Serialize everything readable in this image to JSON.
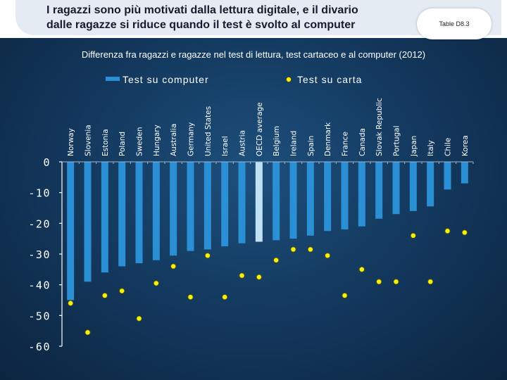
{
  "header": {
    "title_line1": "I ragazzi sono più motivati dalla lettura digitale, e il divario",
    "title_line2": "dalle ragazze si riduce quando il test è svolto al computer",
    "table_label": "Table D8.3"
  },
  "colors": {
    "bar": "#2b8fd6",
    "bar_highlight": "#bfe3f5",
    "marker": "#f5f010",
    "marker_edge": "#5a5a00",
    "axis": "#ffffff",
    "grid_tick": "#9cb8d2"
  },
  "chart_data": {
    "type": "bar",
    "title": "Differenza fra ragazzi e ragazze nel test di lettura, test cartaceo e al computer (2012)",
    "categories": [
      "Norway",
      "Slovenia",
      "Estonia",
      "Poland",
      "Sweden",
      "Hungary",
      "Australia",
      "Germany",
      "United States",
      "Israel",
      "Austria",
      "OECD average",
      "Belgium",
      "Ireland",
      "Spain",
      "Denmark",
      "France",
      "Canada",
      "Slovak Republic",
      "Portugal",
      "Japan",
      "Italy",
      "Chile",
      "Korea"
    ],
    "highlight_category": "OECD average",
    "series": [
      {
        "name": "Test su computer",
        "kind": "bar",
        "values": [
          -45,
          -39,
          -36,
          -34,
          -33,
          -32,
          -30.5,
          -29,
          -28.5,
          -27.5,
          -26.5,
          -26,
          -25.5,
          -25,
          -24,
          -22.5,
          -22,
          -21,
          -18.5,
          -17,
          -16,
          -14.5,
          -9,
          -7
        ]
      },
      {
        "name": "Test su carta",
        "kind": "marker",
        "values": [
          -46,
          -55.5,
          -43.5,
          -42,
          -51,
          -39.5,
          -34,
          -44,
          -30.5,
          -44,
          -37,
          -37.5,
          -32,
          -28.5,
          -28.5,
          -30.5,
          -43.5,
          -35,
          -39,
          -39,
          -24,
          -39,
          -22.5,
          -23
        ]
      }
    ],
    "yticks": [
      0,
      -10,
      -20,
      -30,
      -40,
      -50,
      -60
    ],
    "ylim": [
      -60,
      0
    ],
    "xlabel": "",
    "ylabel": "",
    "legend_position": "top"
  }
}
